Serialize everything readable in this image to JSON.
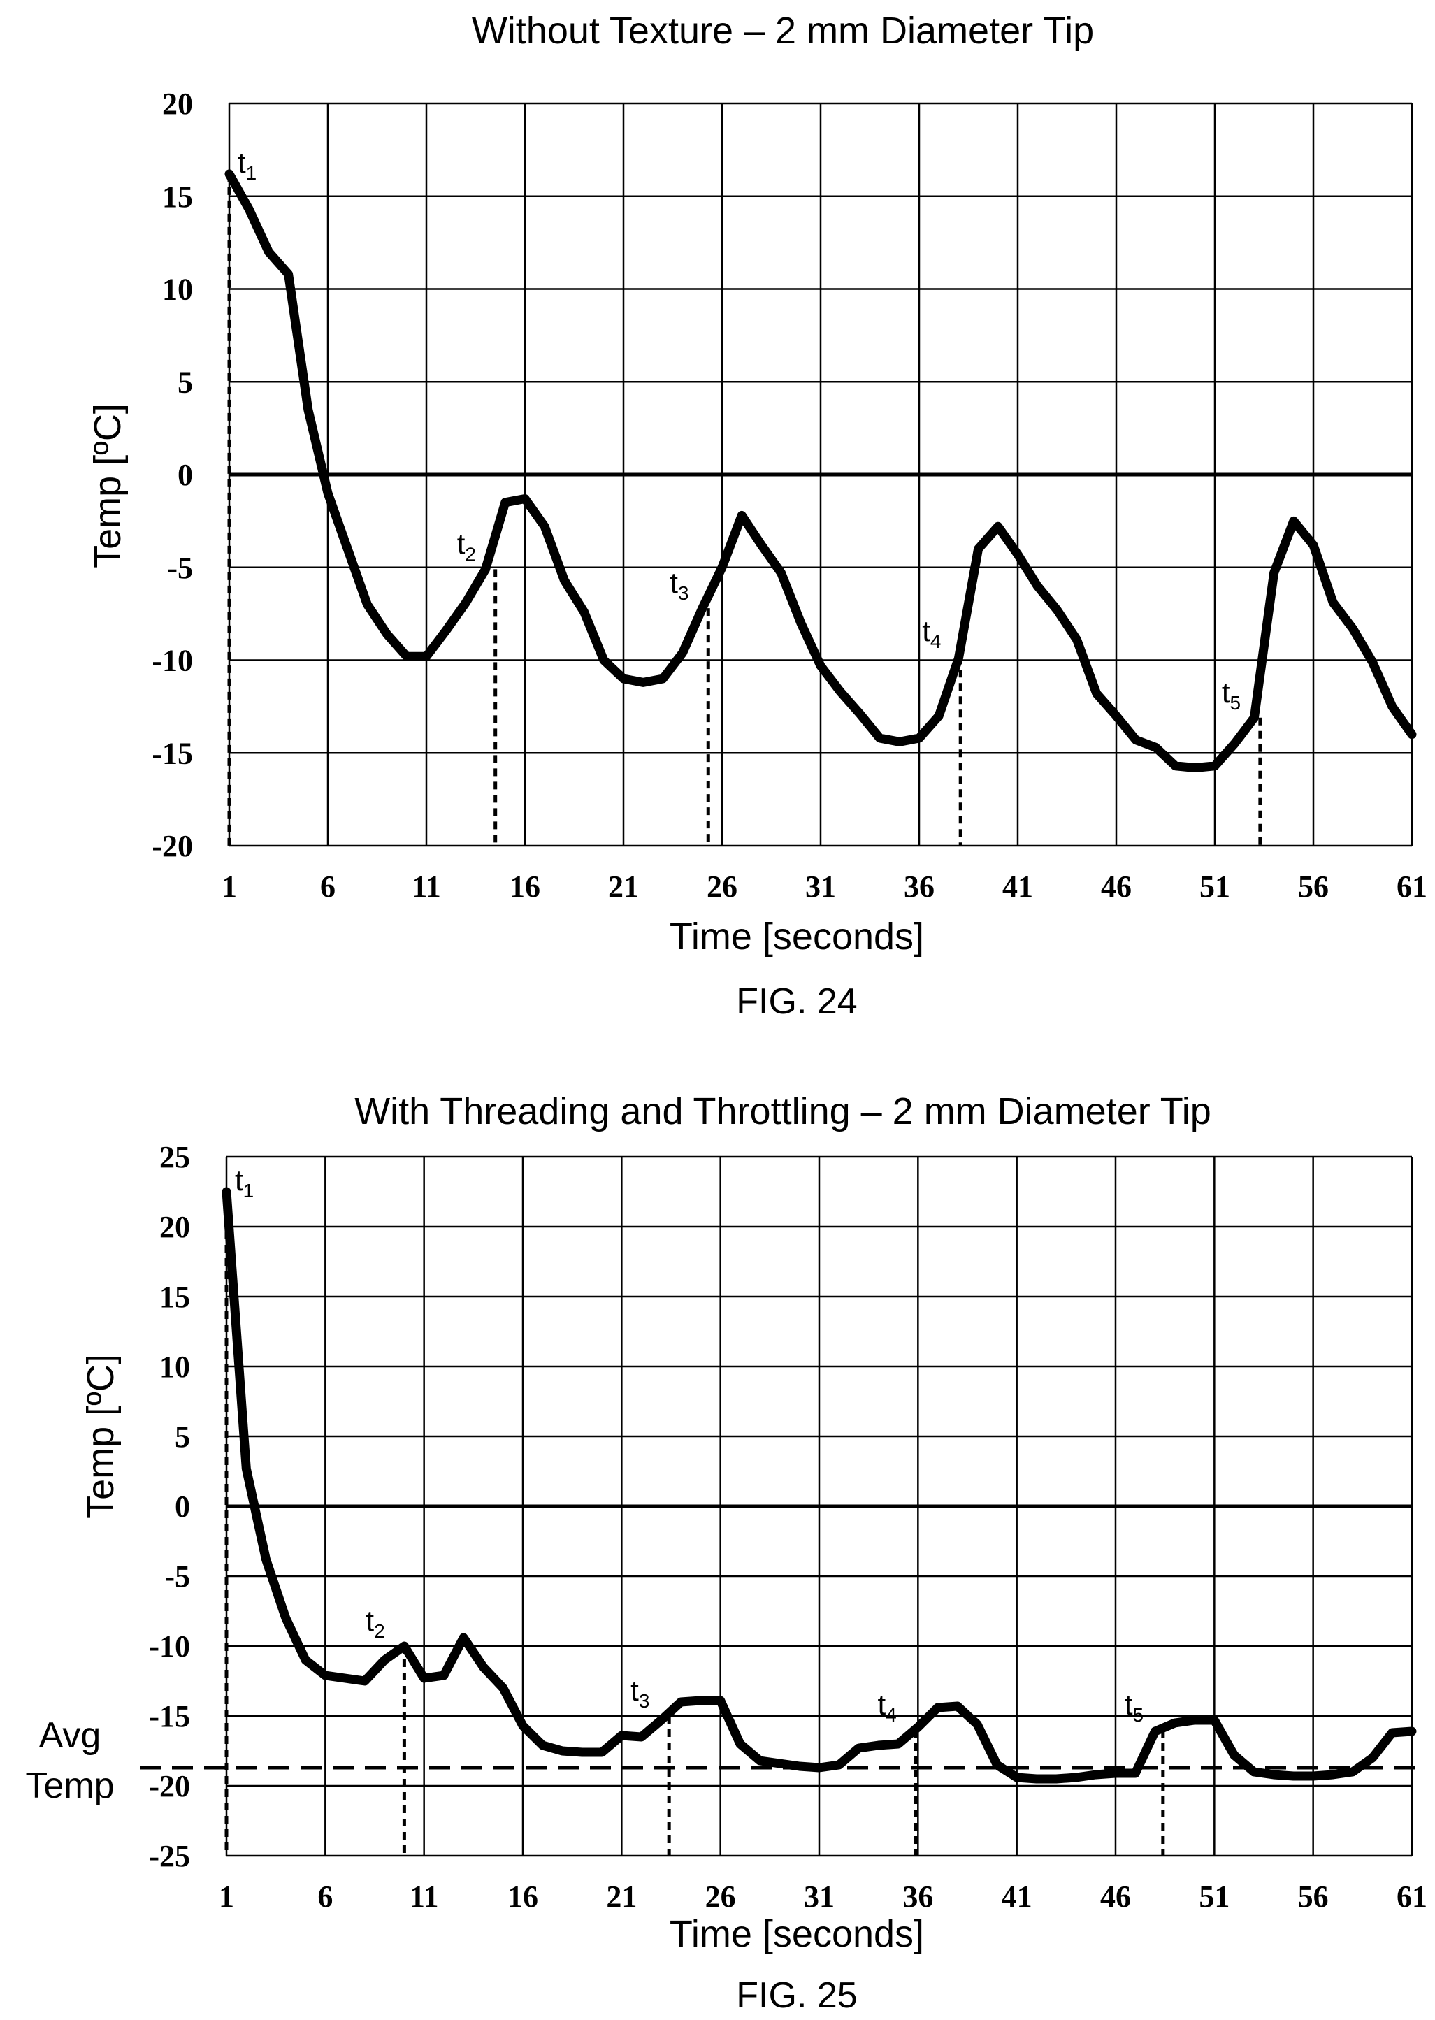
{
  "chart_data": [
    {
      "type": "line",
      "title": "Without Texture – 2 mm Diameter Tip",
      "xlabel": "Time [seconds]",
      "ylabel": "Temp [ºC]",
      "figure_label": "FIG. 24",
      "xlim": [
        1,
        61
      ],
      "ylim": [
        -20,
        20
      ],
      "x_ticks": [
        "1",
        "6",
        "11",
        "16",
        "21",
        "26",
        "31",
        "36",
        "41",
        "46",
        "51",
        "56",
        "61"
      ],
      "y_ticks": [
        "20",
        "15",
        "10",
        "5",
        "0",
        "-5",
        "-10",
        "-15",
        "-20"
      ],
      "grid": true,
      "series": [
        {
          "x": [
            1,
            2,
            3,
            4,
            5,
            6,
            7,
            8,
            9,
            10,
            11,
            12,
            13,
            14,
            15,
            16,
            17,
            18,
            19,
            20,
            21,
            22,
            23,
            24,
            25,
            26,
            27,
            28,
            29,
            30,
            31,
            32,
            33,
            34,
            35,
            36,
            37,
            38,
            39,
            40,
            41,
            42,
            43,
            44,
            45,
            46,
            47,
            48,
            49,
            50,
            51,
            52,
            53,
            54,
            55,
            56,
            57,
            58,
            59,
            60,
            61
          ],
          "values": [
            16.2,
            14.3,
            12.0,
            10.8,
            3.5,
            -1.0,
            -4.0,
            -7.0,
            -8.6,
            -9.8,
            -9.8,
            -8.4,
            -6.9,
            -5.1,
            -1.5,
            -1.3,
            -2.8,
            -5.7,
            -7.4,
            -10.0,
            -11.0,
            -11.2,
            -11.0,
            -9.6,
            -7.2,
            -5.0,
            -2.2,
            -3.8,
            -5.3,
            -8.0,
            -10.3,
            -11.7,
            -12.9,
            -14.2,
            -14.4,
            -14.2,
            -13.0,
            -9.9,
            -4.0,
            -2.8,
            -4.3,
            -6.0,
            -7.3,
            -8.9,
            -11.8,
            -13.0,
            -14.3,
            -14.7,
            -15.7,
            -15.8,
            -15.7,
            -14.5,
            -13.1,
            -5.3,
            -2.5,
            -3.8,
            -6.9,
            -8.3,
            -10.1,
            -12.5,
            -14.0
          ]
        }
      ],
      "markers": [
        {
          "label": "t",
          "sub": "1",
          "x": 1,
          "y": 16.2
        },
        {
          "label": "t",
          "sub": "2",
          "x": 14.5,
          "y": -5.1
        },
        {
          "label": "t",
          "sub": "3",
          "x": 25.3,
          "y": -7.2
        },
        {
          "label": "t",
          "sub": "4",
          "x": 38.1,
          "y": -9.8
        },
        {
          "label": "t",
          "sub": "5",
          "x": 53.3,
          "y": -13.1
        }
      ]
    },
    {
      "type": "line",
      "title": "With Threading and Throttling – 2 mm Diameter Tip",
      "xlabel": "Time [seconds]",
      "ylabel": "Temp [ºC]",
      "figure_label": "FIG. 25",
      "xlim": [
        1,
        61
      ],
      "ylim": [
        -25,
        25
      ],
      "x_ticks": [
        "1",
        "6",
        "11",
        "16",
        "21",
        "26",
        "31",
        "36",
        "41",
        "46",
        "51",
        "56",
        "61"
      ],
      "y_ticks": [
        "25",
        "20",
        "15",
        "10",
        "5",
        "0",
        "-5",
        "-10",
        "-15",
        "-20",
        "-25"
      ],
      "grid": true,
      "avg_label_line1": "Avg",
      "avg_label_line2": "Temp",
      "avg_temp": -18.7,
      "series": [
        {
          "x": [
            1,
            2,
            3,
            4,
            5,
            6,
            7,
            8,
            9,
            10,
            11,
            12,
            13,
            14,
            15,
            16,
            17,
            18,
            19,
            20,
            21,
            22,
            23,
            24,
            25,
            26,
            27,
            28,
            29,
            30,
            31,
            32,
            33,
            34,
            35,
            36,
            37,
            38,
            39,
            40,
            41,
            42,
            43,
            44,
            45,
            46,
            47,
            48,
            49,
            50,
            51,
            52,
            53,
            54,
            55,
            56,
            57,
            58,
            59,
            60,
            61
          ],
          "values": [
            22.5,
            2.7,
            -3.8,
            -8.0,
            -11.0,
            -12.1,
            -12.3,
            -12.5,
            -11.0,
            -10.0,
            -12.3,
            -12.1,
            -9.4,
            -11.5,
            -13.0,
            -15.7,
            -17.1,
            -17.5,
            -17.6,
            -17.6,
            -16.4,
            -16.5,
            -15.3,
            -14.0,
            -13.9,
            -13.9,
            -17.0,
            -18.2,
            -18.4,
            -18.6,
            -18.7,
            -18.5,
            -17.3,
            -17.1,
            -17.0,
            -15.8,
            -14.4,
            -14.3,
            -15.6,
            -18.5,
            -19.4,
            -19.5,
            -19.5,
            -19.4,
            -19.2,
            -19.1,
            -19.1,
            -16.1,
            -15.5,
            -15.3,
            -15.3,
            -17.8,
            -19.0,
            -19.2,
            -19.3,
            -19.3,
            -19.2,
            -19.0,
            -18.0,
            -16.2,
            -16.1
          ]
        }
      ],
      "markers": [
        {
          "label": "t",
          "sub": "1",
          "x": 1,
          "y": 22.5
        },
        {
          "label": "t",
          "sub": "2",
          "x": 10,
          "y": -10.0
        },
        {
          "label": "t",
          "sub": "3",
          "x": 23.4,
          "y": -15.0
        },
        {
          "label": "t",
          "sub": "4",
          "x": 35.9,
          "y": -16.0
        },
        {
          "label": "t",
          "sub": "5",
          "x": 48.4,
          "y": -16.0
        }
      ]
    }
  ]
}
